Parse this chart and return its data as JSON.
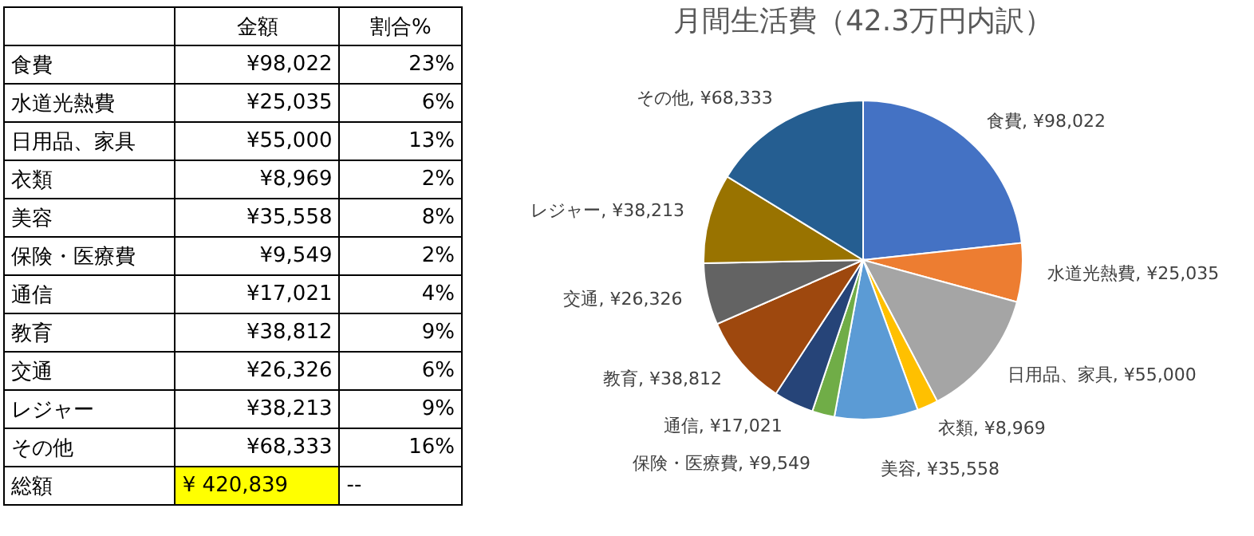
{
  "chart_data": [
    {
      "type": "other",
      "annotations": [
        "金額",
        "割合%",
        "食費",
        "¥98,022",
        "23%",
        "水道光熱費",
        "¥25,035",
        "6%",
        "日用品、家具",
        "¥55,000",
        "13%",
        "衣類",
        "¥8,969",
        "2%",
        "美容",
        "¥35,558",
        "8%",
        "保険・医療費",
        "¥9,549",
        "2%",
        "通信",
        "¥17,021",
        "4%",
        "教育",
        "¥38,812",
        "9%",
        "交通",
        "¥26,326",
        "6%",
        "レジャー",
        "¥38,213",
        "9%",
        "その他",
        "¥68,333",
        "16%",
        "総額",
        "¥ 420,839",
        "--"
      ]
    },
    {
      "type": "pie",
      "title": "月間生活費（42.3万円内訳）",
      "categories": [
        "食費",
        "水道光熱費",
        "日用品、家具",
        "衣類",
        "美容",
        "保険・医療費",
        "通信",
        "教育",
        "交通",
        "レジャー",
        "その他"
      ],
      "values": [
        98022,
        25035,
        55000,
        8969,
        35558,
        9549,
        17021,
        38812,
        26326,
        38213,
        68333
      ],
      "colors": [
        "#4472c4",
        "#ed7d31",
        "#a5a5a5",
        "#ffc000",
        "#5b9bd5",
        "#70ad47",
        "#264478",
        "#9e480e",
        "#636363",
        "#997300",
        "#255e91"
      ],
      "value_labels": [
        "¥98,022",
        "¥25,035",
        "¥55,000",
        "¥8,969",
        "¥35,558",
        "¥9,549",
        "¥17,021",
        "¥38,812",
        "¥26,326",
        "¥38,213",
        "¥68,333"
      ],
      "legend": false
    }
  ]
}
